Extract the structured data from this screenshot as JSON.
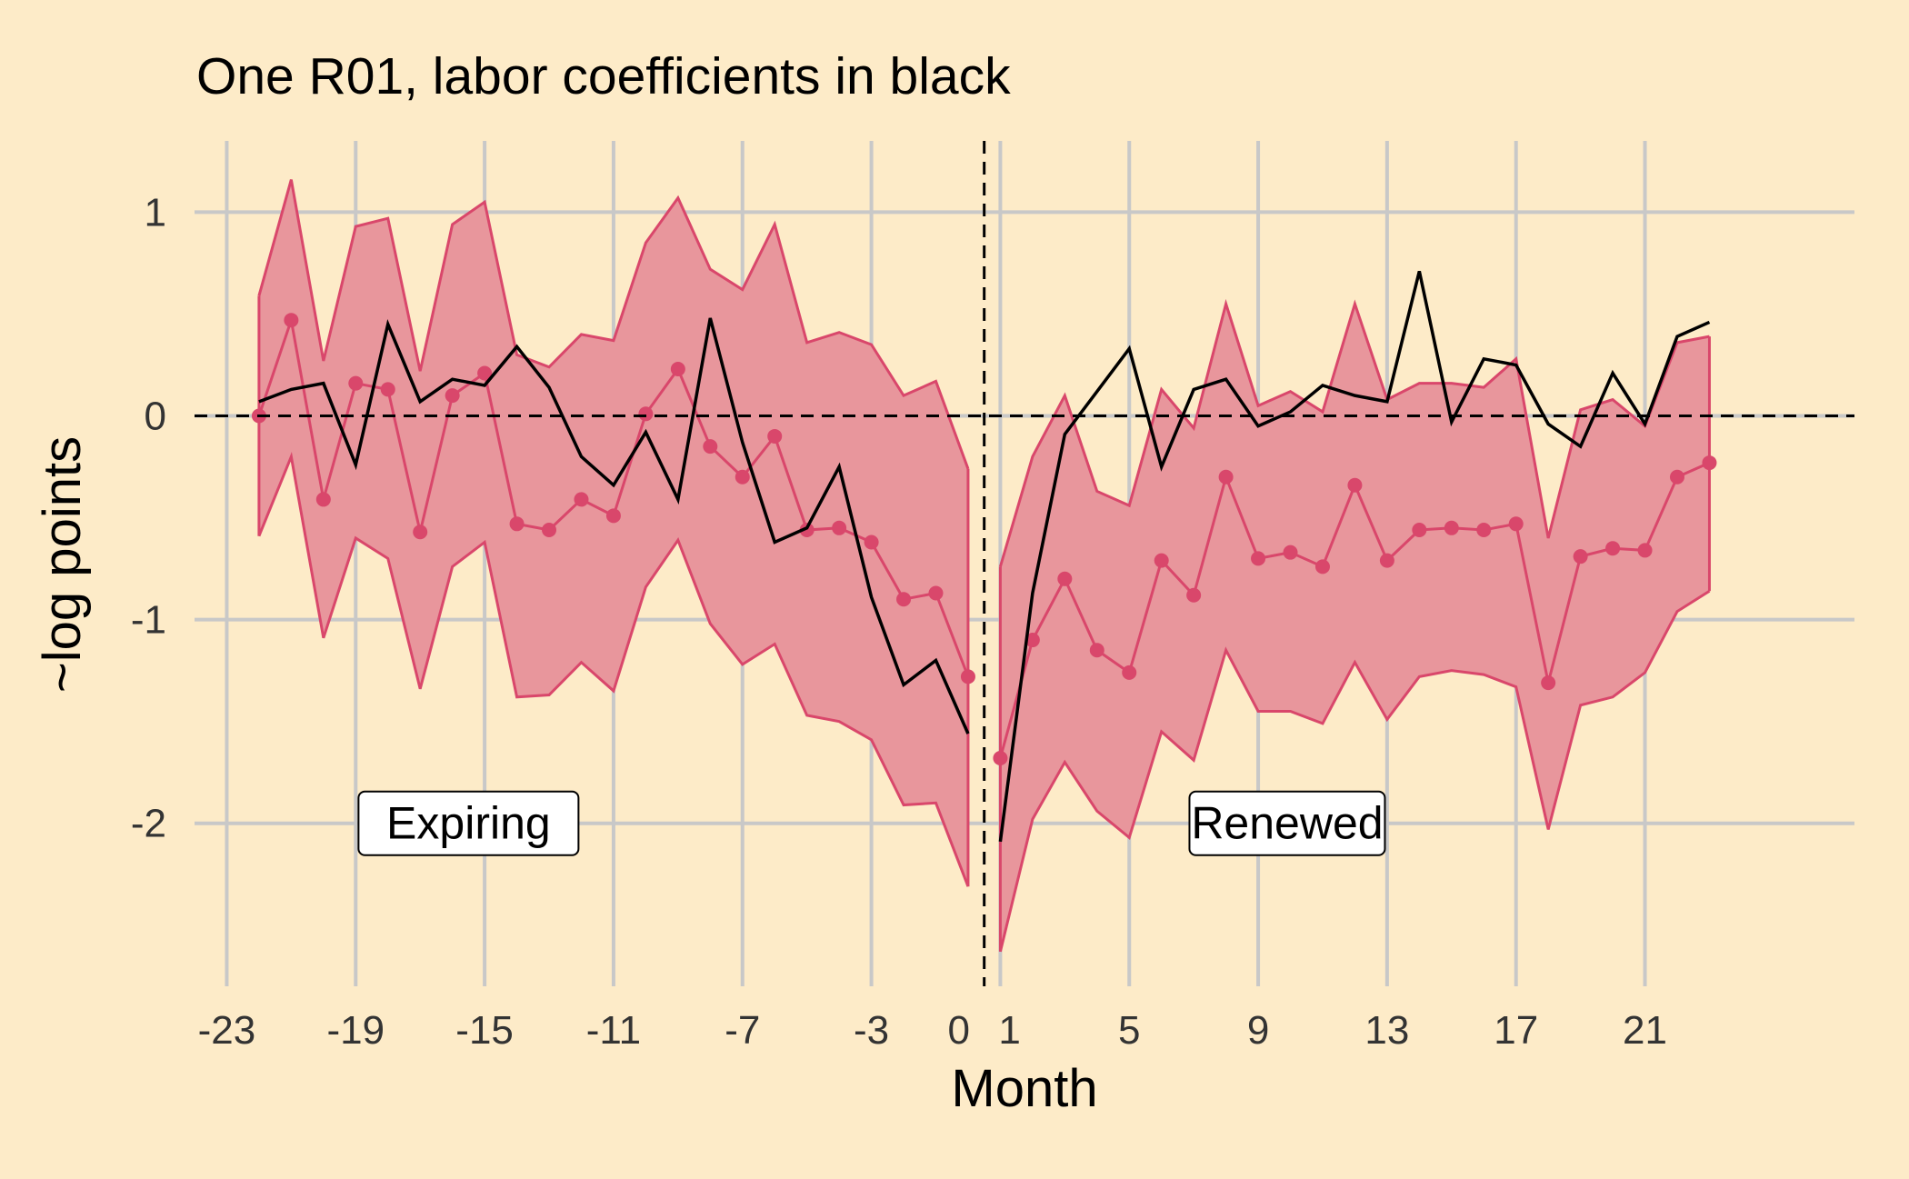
{
  "chart_data": {
    "type": "line",
    "title": "One R01, labor coefficients in black",
    "xlabel": "Month",
    "ylabel": "~log points",
    "xlim": [
      -24,
      27.5
    ],
    "ylim": [
      -2.8,
      1.35
    ],
    "x_ticks": [
      -23,
      -19,
      -15,
      -11,
      -7,
      -3,
      0,
      1,
      5,
      9,
      13,
      17,
      21
    ],
    "x_tick_labels": [
      "-23",
      "-19",
      "-15",
      "-11",
      "-7",
      "-3",
      "0",
      "1",
      "5",
      "9",
      "13",
      "17",
      "21"
    ],
    "y_ticks": [
      1,
      0,
      -1,
      -2
    ],
    "y_tick_labels": [
      "1",
      "0",
      "-1",
      "-2"
    ],
    "grid": true,
    "reference_lines": {
      "horizontal": 0,
      "vertical": 0.5,
      "style": "dashed"
    },
    "annotations": [
      {
        "text": "Expiring",
        "x": -15.5,
        "y": -2.0
      },
      {
        "text": "Renewed",
        "x": 9.9,
        "y": -2.0
      }
    ],
    "colors": {
      "background": "#fdebc8",
      "grid": "#c8c8c8",
      "band_fill": "#e8969c",
      "band_line": "#d9476b",
      "estimate": "#d9476b",
      "labor": "#000000"
    },
    "series": [
      {
        "segment": "expiring",
        "x": [
          -22,
          -21,
          -20,
          -19,
          -18,
          -17,
          -16,
          -15,
          -14,
          -13,
          -12,
          -11,
          -10,
          -9,
          -8,
          -7,
          -6,
          -5,
          -4,
          -3,
          -2,
          -1,
          0
        ],
        "estimate": [
          0,
          0.47,
          -0.41,
          0.16,
          0.13,
          -0.57,
          0.1,
          0.21,
          -0.53,
          -0.56,
          -0.41,
          -0.49,
          0.01,
          0.23,
          -0.15,
          -0.3,
          -0.1,
          -0.56,
          -0.55,
          -0.62,
          -0.9,
          -0.87,
          -1.28
        ],
        "upper": [
          0.59,
          1.16,
          0.27,
          0.93,
          0.97,
          0.22,
          0.94,
          1.05,
          0.3,
          0.24,
          0.4,
          0.37,
          0.85,
          1.07,
          0.72,
          0.62,
          0.94,
          0.36,
          0.41,
          0.35,
          0.1,
          0.17,
          -0.26
        ],
        "lower": [
          -0.59,
          -0.2,
          -1.09,
          -0.6,
          -0.7,
          -1.34,
          -0.74,
          -0.62,
          -1.38,
          -1.37,
          -1.21,
          -1.35,
          -0.84,
          -0.61,
          -1.02,
          -1.22,
          -1.12,
          -1.47,
          -1.5,
          -1.59,
          -1.91,
          -1.9,
          -2.31
        ],
        "labor": [
          0.07,
          0.13,
          0.16,
          -0.24,
          0.45,
          0.07,
          0.18,
          0.15,
          0.34,
          0.14,
          -0.2,
          -0.34,
          -0.08,
          -0.41,
          0.48,
          -0.13,
          -0.62,
          -0.55,
          -0.25,
          -0.89,
          -1.32,
          -1.2,
          -1.56
        ]
      },
      {
        "segment": "renewed",
        "x": [
          1,
          2,
          3,
          4,
          5,
          6,
          7,
          8,
          9,
          10,
          11,
          12,
          13,
          14,
          15,
          16,
          17,
          18,
          19,
          20,
          21,
          22,
          23
        ],
        "estimate": [
          -1.68,
          -1.1,
          -0.8,
          -1.15,
          -1.26,
          -0.71,
          -0.88,
          -0.3,
          -0.7,
          -0.67,
          -0.74,
          -0.34,
          -0.71,
          -0.56,
          -0.55,
          -0.56,
          -0.53,
          -1.31,
          -0.69,
          -0.65,
          -0.66,
          -0.3,
          -0.23
        ],
        "upper": [
          -0.74,
          -0.2,
          0.1,
          -0.37,
          -0.44,
          0.13,
          -0.06,
          0.55,
          0.05,
          0.12,
          0.02,
          0.55,
          0.08,
          0.16,
          0.16,
          0.14,
          0.28,
          -0.6,
          0.03,
          0.08,
          -0.05,
          0.36,
          0.39
        ],
        "lower": [
          -2.63,
          -1.98,
          -1.7,
          -1.94,
          -2.07,
          -1.55,
          -1.69,
          -1.15,
          -1.45,
          -1.45,
          -1.51,
          -1.21,
          -1.49,
          -1.28,
          -1.25,
          -1.27,
          -1.33,
          -2.03,
          -1.42,
          -1.38,
          -1.26,
          -0.96,
          -0.86
        ],
        "labor": [
          -2.09,
          -0.87,
          -0.09,
          0.12,
          0.33,
          -0.25,
          0.13,
          0.18,
          -0.05,
          0.02,
          0.15,
          0.1,
          0.07,
          0.71,
          -0.03,
          0.28,
          0.25,
          -0.04,
          -0.15,
          0.21,
          -0.04,
          0.39,
          0.46
        ]
      }
    ]
  }
}
